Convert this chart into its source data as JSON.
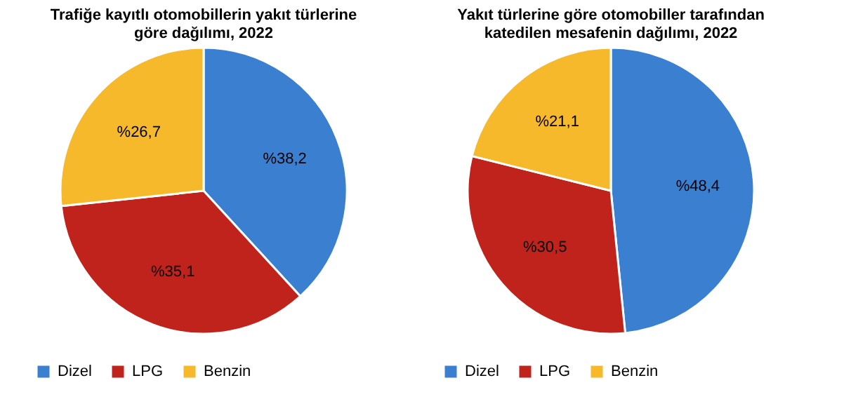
{
  "chart_data": [
    {
      "type": "pie",
      "title": "Trafiğe kayıtlı otomobillerin yakıt türlerine göre dağılımı, 2022",
      "categories": [
        "Dizel",
        "LPG",
        "Benzin"
      ],
      "values": [
        38.2,
        35.1,
        26.7
      ],
      "value_labels": [
        "%38,2",
        "%35,1",
        "%26,7"
      ],
      "colors": [
        "#3b7fd1",
        "#c0221c",
        "#f6b92b"
      ],
      "legend": "bottom"
    },
    {
      "type": "pie",
      "title": "Yakıt türlerine göre otomobiller tarafından katedilen mesafenin dağılımı, 2022",
      "categories": [
        "Dizel",
        "LPG",
        "Benzin"
      ],
      "values": [
        48.4,
        30.5,
        21.1
      ],
      "value_labels": [
        "%48,4",
        "%30,5",
        "%21,1"
      ],
      "colors": [
        "#3b7fd1",
        "#c0221c",
        "#f6b92b"
      ],
      "legend": "bottom"
    }
  ]
}
